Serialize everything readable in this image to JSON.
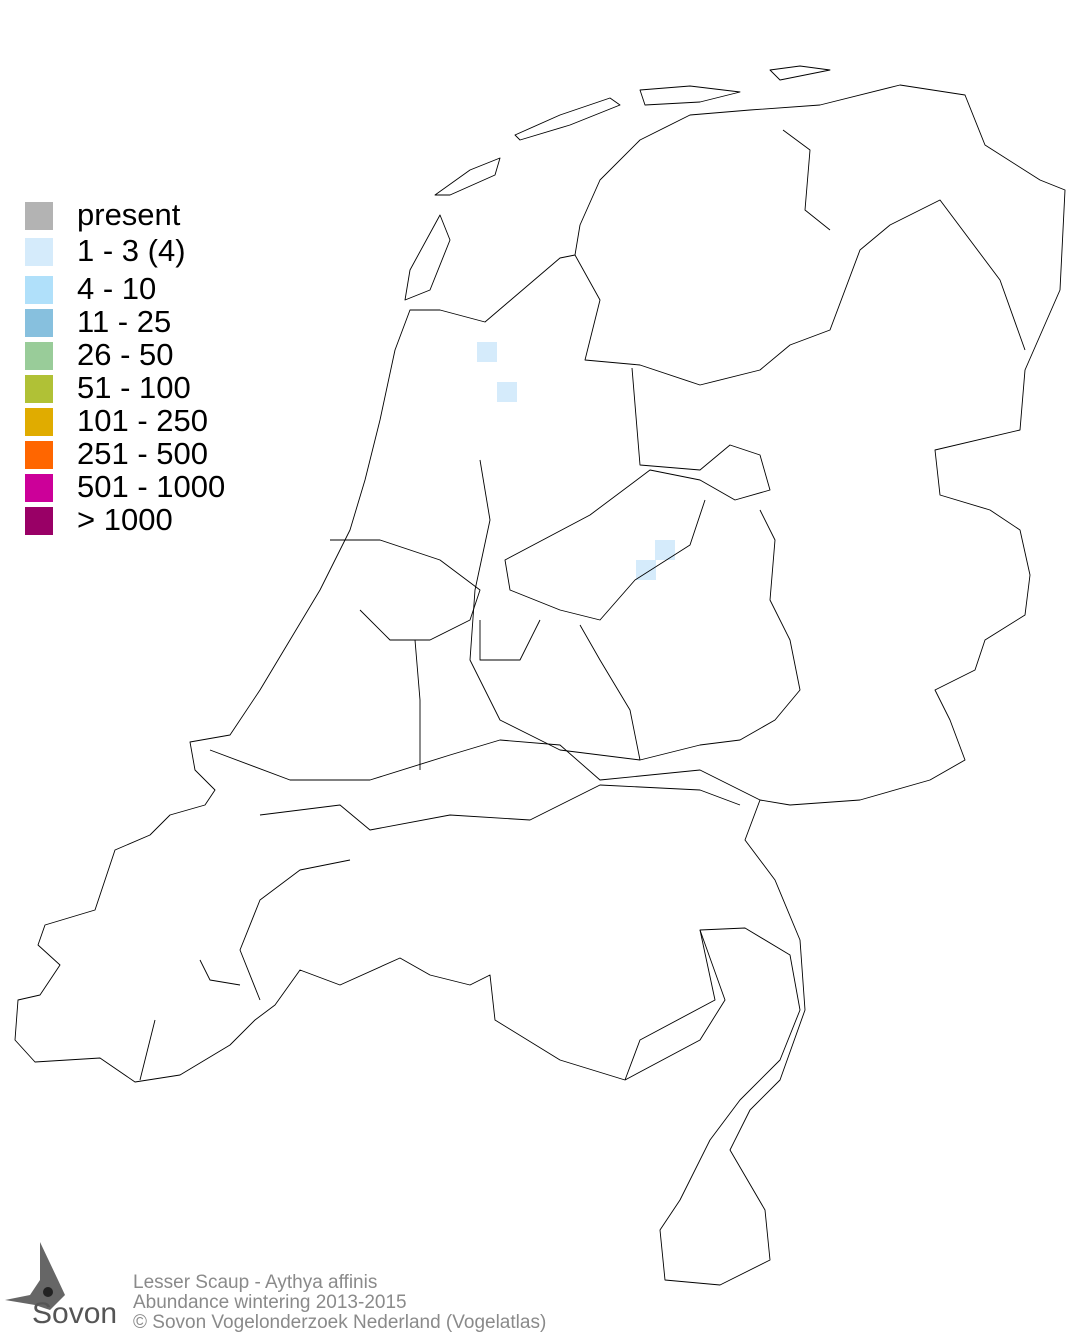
{
  "legend": [
    {
      "label": "present",
      "color": "#b3b3b3"
    },
    {
      "label": "1 - 3 (4)",
      "color": "#d5ebfb"
    },
    {
      "label": "4 - 10",
      "color": "#b0e0fa"
    },
    {
      "label": "11 - 25",
      "color": "#87c0de"
    },
    {
      "label": "26 - 50",
      "color": "#99cc99"
    },
    {
      "label": "51 - 100",
      "color": "#b0c136"
    },
    {
      "label": "101 - 250",
      "color": "#e0ac00"
    },
    {
      "label": "251 - 500",
      "color": "#ff6600"
    },
    {
      "label": "501 - 1000",
      "color": "#cc0099"
    },
    {
      "label": "> 1000",
      "color": "#990066"
    }
  ],
  "occupied_cells": [
    {
      "class": "1 - 3 (4)",
      "color": "#d5ebfb"
    },
    {
      "class": "1 - 3 (4)",
      "color": "#d5ebfb"
    },
    {
      "class": "1 - 3 (4)",
      "color": "#d5ebfb"
    },
    {
      "class": "1 - 3 (4)",
      "color": "#d5ebfb"
    }
  ],
  "footer": {
    "line1": "Lesser Scaup - Aythya affinis",
    "line2": "Abundance wintering 2013-2015",
    "line3": "© Sovon Vogelonderzoek Nederland (Vogelatlas)"
  },
  "logo": {
    "text": "Sovon"
  }
}
